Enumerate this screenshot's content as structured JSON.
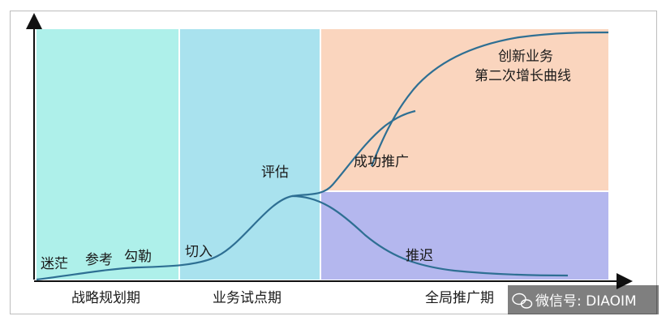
{
  "labels": {
    "confused": "迷茫",
    "reference": "参考",
    "outline": "勾勒",
    "entry": "切入",
    "evaluate": "评估",
    "success_promote": "成功推广",
    "retreat": "推迟",
    "second_curve_line1": "创新业务",
    "second_curve_line2": "第二次增长曲线"
  },
  "stages": {
    "strategy": "战略规划期",
    "pilot": "业务试点期",
    "rollout": "全局推广期"
  },
  "watermark": {
    "text": "微信号: DIAOIM"
  },
  "colors": {
    "strategy_bg": "#aef0ea",
    "pilot_bg": "#a9e2ee",
    "growth_bg": "#fad5be",
    "retreat_bg": "#b4b7ee",
    "curve": "#2e6f93",
    "axis": "#111111"
  }
}
